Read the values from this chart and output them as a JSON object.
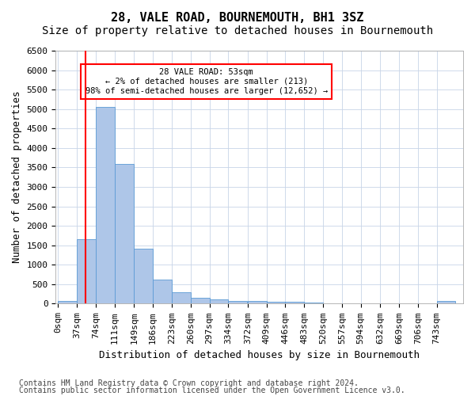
{
  "title": "28, VALE ROAD, BOURNEMOUTH, BH1 3SZ",
  "subtitle": "Size of property relative to detached houses in Bournemouth",
  "xlabel": "Distribution of detached houses by size in Bournemouth",
  "ylabel": "Number of detached properties",
  "bar_color": "#aec6e8",
  "bar_edge_color": "#5b9bd5",
  "background_color": "#ffffff",
  "grid_color": "#c8d4e8",
  "annotation_text": "28 VALE ROAD: 53sqm\n← 2% of detached houses are smaller (213)\n98% of semi-detached houses are larger (12,652) →",
  "property_line_x": 53,
  "categories": [
    "0sqm",
    "37sqm",
    "74sqm",
    "111sqm",
    "149sqm",
    "186sqm",
    "223sqm",
    "260sqm",
    "297sqm",
    "334sqm",
    "372sqm",
    "409sqm",
    "446sqm",
    "483sqm",
    "520sqm",
    "557sqm",
    "594sqm",
    "632sqm",
    "669sqm",
    "706sqm",
    "743sqm"
  ],
  "bin_edges": [
    0,
    37,
    74,
    111,
    149,
    186,
    223,
    260,
    297,
    334,
    372,
    409,
    446,
    483,
    520,
    557,
    594,
    632,
    669,
    706,
    743
  ],
  "bar_heights": [
    75,
    1650,
    5060,
    3600,
    1420,
    620,
    290,
    145,
    110,
    80,
    60,
    55,
    50,
    30,
    15,
    10,
    5,
    3,
    2,
    1,
    60
  ],
  "ylim": [
    0,
    6500
  ],
  "yticks": [
    0,
    500,
    1000,
    1500,
    2000,
    2500,
    3000,
    3500,
    4000,
    4500,
    5000,
    5500,
    6000,
    6500
  ],
  "footer_line1": "Contains HM Land Registry data © Crown copyright and database right 2024.",
  "footer_line2": "Contains public sector information licensed under the Open Government Licence v3.0.",
  "title_fontsize": 11,
  "subtitle_fontsize": 10,
  "xlabel_fontsize": 9,
  "ylabel_fontsize": 9,
  "tick_fontsize": 8,
  "footer_fontsize": 7
}
